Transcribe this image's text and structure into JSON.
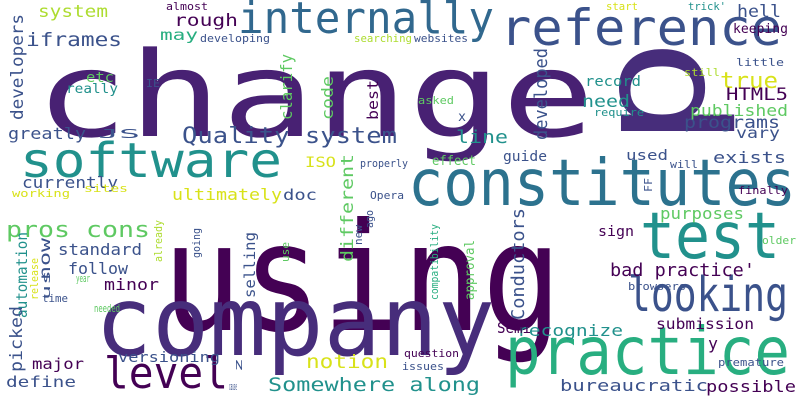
{
  "palette": [
    "#440154",
    "#472d7b",
    "#3b528b",
    "#2c728e",
    "#21918c",
    "#28ae80",
    "#5ec962",
    "#addc30",
    "#fde725"
  ],
  "words": [
    {
      "text": "using",
      "color": "#440154"
    },
    {
      "text": "change",
      "color": "#482173"
    },
    {
      "text": "company",
      "color": "#472d7b"
    },
    {
      "text": "practice",
      "color": "#28ae80"
    },
    {
      "text": "constitutes",
      "color": "#2c728e"
    },
    {
      "text": "test",
      "color": "#21918c"
    },
    {
      "text": "software",
      "color": "#21918c"
    },
    {
      "text": "reference",
      "color": "#3b528b"
    },
    {
      "text": "internally",
      "color": "#31688e"
    },
    {
      "text": "looking",
      "color": "#3b528b"
    },
    {
      "text": "level",
      "color": "#440154"
    },
    {
      "text": "Quality system",
      "color": "#3b528b"
    },
    {
      "text": "p",
      "color": "#472d7b"
    },
    {
      "text": "pros cons",
      "color": "#5ec962"
    },
    {
      "text": "Somewhere along",
      "color": "#21918c"
    },
    {
      "text": "notion",
      "color": "#d8e219"
    },
    {
      "text": "bad practice'",
      "color": "#440154"
    },
    {
      "text": "developed",
      "color": "#3b528b"
    },
    {
      "text": "Conductors",
      "color": "#3b528b"
    },
    {
      "text": "true",
      "color": "#d8e219"
    },
    {
      "text": "HTML5",
      "color": "#440154"
    },
    {
      "text": "programs",
      "color": "#3b528b"
    },
    {
      "text": "published",
      "color": "#5ec962"
    },
    {
      "text": "record",
      "color": "#21918c"
    },
    {
      "text": "need",
      "color": "#21918c"
    },
    {
      "text": "line",
      "color": "#21918c"
    },
    {
      "text": "iframes",
      "color": "#3b528b"
    },
    {
      "text": "rough",
      "color": "#440154"
    },
    {
      "text": "system",
      "color": "#addc30"
    },
    {
      "text": "may",
      "color": "#28ae80"
    },
    {
      "text": "hell",
      "color": "#3b528b"
    },
    {
      "text": "keeping",
      "color": "#440154"
    },
    {
      "text": "greatly",
      "color": "#3b528b"
    },
    {
      "text": "developers",
      "color": "#3b528b"
    },
    {
      "text": "etc",
      "color": "#5ec962"
    },
    {
      "text": "really",
      "color": "#21918c"
    },
    {
      "text": "clarify",
      "color": "#5ec962"
    },
    {
      "text": "code",
      "color": "#5ec962"
    },
    {
      "text": "best",
      "color": "#440154"
    },
    {
      "text": "vary",
      "color": "#3b528b"
    },
    {
      "text": "exists",
      "color": "#3b528b"
    },
    {
      "text": "used",
      "color": "#3b528b"
    },
    {
      "text": "guide",
      "color": "#3b528b"
    },
    {
      "text": "currently",
      "color": "#3b528b"
    },
    {
      "text": "ultimately",
      "color": "#d8e219"
    },
    {
      "text": "doc",
      "color": "#3b528b"
    },
    {
      "text": "ISO",
      "color": "#d8e219"
    },
    {
      "text": "different",
      "color": "#5ec962"
    },
    {
      "text": "effect",
      "color": "#5ec962"
    },
    {
      "text": "standard",
      "color": "#3b528b"
    },
    {
      "text": "follow",
      "color": "#3b528b"
    },
    {
      "text": "minor",
      "color": "#440154"
    },
    {
      "text": "now",
      "color": "#3b528b"
    },
    {
      "text": "automation",
      "color": "#21918c"
    },
    {
      "text": "selling",
      "color": "#3b528b"
    },
    {
      "text": "purposes",
      "color": "#5ec962"
    },
    {
      "text": "sign",
      "color": "#440154"
    },
    {
      "text": "submission",
      "color": "#440154"
    },
    {
      "text": "recognize",
      "color": "#21918c"
    },
    {
      "text": "Semi",
      "color": "#440154"
    },
    {
      "text": "picked",
      "color": "#3b528b"
    },
    {
      "text": "major",
      "color": "#440154"
    },
    {
      "text": "define",
      "color": "#3b528b"
    },
    {
      "text": "versioning",
      "color": "#3b528b"
    },
    {
      "text": "bureaucratic",
      "color": "#3b528b"
    },
    {
      "text": "possible",
      "color": "#440154"
    },
    {
      "text": "premature",
      "color": "#3b528b"
    },
    {
      "text": "y",
      "color": "#440154"
    },
    {
      "text": "question",
      "color": "#440154"
    },
    {
      "text": "issues",
      "color": "#3b528b"
    },
    {
      "text": "approval",
      "color": "#5ec962"
    },
    {
      "text": "compatibility",
      "color": "#28ae80"
    },
    {
      "text": "browsers",
      "color": "#3b528b"
    },
    {
      "text": "finally",
      "color": "#440154"
    },
    {
      "text": "older",
      "color": "#5ec962"
    },
    {
      "text": "still",
      "color": "#addc30"
    },
    {
      "text": "little",
      "color": "#3b528b"
    },
    {
      "text": "require",
      "color": "#21918c"
    },
    {
      "text": "will",
      "color": "#3b528b"
    },
    {
      "text": "FF",
      "color": "#3b528b"
    },
    {
      "text": "trick'",
      "color": "#21918c"
    },
    {
      "text": "start",
      "color": "#d8e219"
    },
    {
      "text": "websites",
      "color": "#3b528b"
    },
    {
      "text": "searching",
      "color": "#addc30"
    },
    {
      "text": "developing",
      "color": "#3b528b"
    },
    {
      "text": "almost",
      "color": "#440154"
    },
    {
      "text": "asked",
      "color": "#5ec962"
    },
    {
      "text": "x",
      "color": "#3b528b"
    },
    {
      "text": "properly",
      "color": "#3b528b"
    },
    {
      "text": "Opera",
      "color": "#3b528b"
    },
    {
      "text": "ago",
      "color": "#3b528b"
    },
    {
      "text": "new",
      "color": "#3b528b"
    },
    {
      "text": "already",
      "color": "#addc30"
    },
    {
      "text": "going",
      "color": "#3b528b"
    },
    {
      "text": "use",
      "color": "#5ec962"
    },
    {
      "text": "release",
      "color": "#d8e219"
    },
    {
      "text": "working",
      "color": "#d8e219"
    },
    {
      "text": "sites",
      "color": "#d8e219"
    },
    {
      "text": "us",
      "color": "#3b528b"
    },
    {
      "text": "year",
      "color": "#5ec962"
    },
    {
      "text": "time",
      "color": "#3b528b"
    },
    {
      "text": "needed",
      "color": "#5ec962"
    },
    {
      "text": "JS",
      "color": "#3b528b"
    },
    {
      "text": "IE",
      "color": "#3b528b"
    },
    {
      "text": "z",
      "color": "#3b528b"
    },
    {
      "text": "cause",
      "color": "#3b528b"
    }
  ]
}
